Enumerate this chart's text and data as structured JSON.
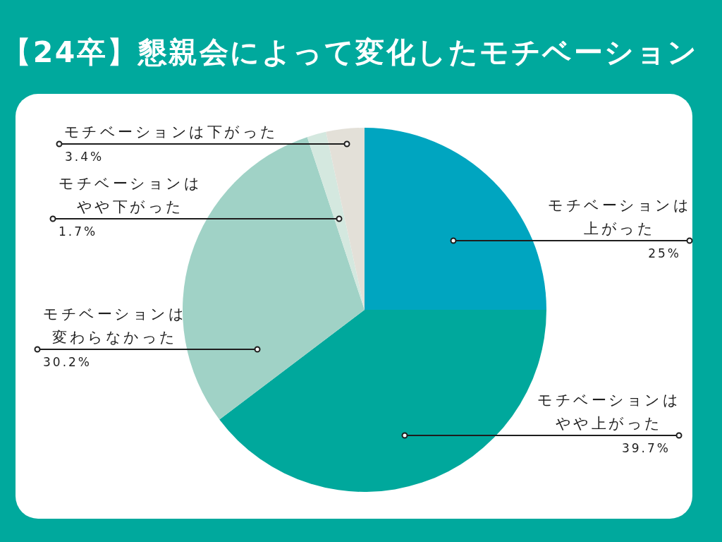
{
  "chart_data": {
    "type": "pie",
    "title": "【24卒】懇親会によって変化したモチベーション",
    "categories": [
      "モチベーションは上がった",
      "モチベーションはやや上がった",
      "モチベーションは変わらなかった",
      "モチベーションはやや下がった",
      "モチベーションは下がった"
    ],
    "values": [
      25,
      39.7,
      30.2,
      1.7,
      3.4
    ],
    "value_labels": [
      "25%",
      "39.7%",
      "30.2%",
      "1.7%",
      "3.4%"
    ],
    "colors": [
      "#00a5c0",
      "#00a89c",
      "#a0d2c6",
      "#d4e8df",
      "#e3e0d8"
    ]
  }
}
